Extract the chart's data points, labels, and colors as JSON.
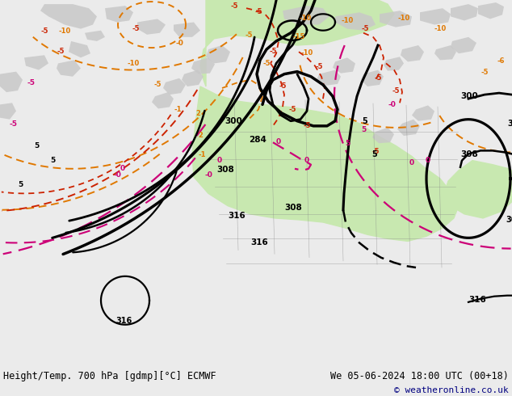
{
  "title_left": "Height/Temp. 700 hPa [gdmp][°C] ECMWF",
  "title_right": "We 05-06-2024 18:00 UTC (00+18)",
  "copyright": "© weatheronline.co.uk",
  "fig_width": 6.34,
  "fig_height": 4.9,
  "dpi": 100,
  "bg_light": "#ebebeb",
  "land_gray": "#c8c8c8",
  "land_green": "#c8e8b0",
  "water_color": "#e0e8f0",
  "black_line_lw": 2.0,
  "orange_color": "#e07800",
  "red_color": "#cc2200",
  "magenta_color": "#cc0077"
}
